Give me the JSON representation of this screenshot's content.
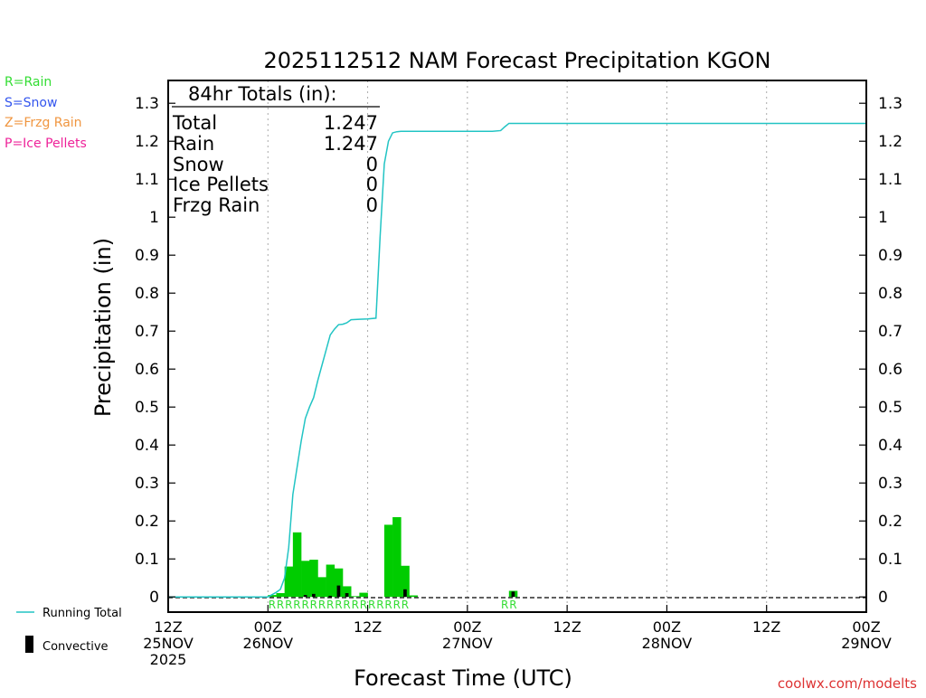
{
  "chart_data": {
    "type": "bar",
    "title": "2025112512 NAM Forecast Precipitation KGON",
    "xlabel": "Forecast Time (UTC)",
    "ylabel": "Precipitation (in)",
    "ylim": [
      -0.04,
      1.36
    ],
    "xlim_hours": [
      0,
      84
    ],
    "y_ticks": [
      {
        "value": 0,
        "label": "0"
      },
      {
        "value": 0.1,
        "label": "0.1"
      },
      {
        "value": 0.2,
        "label": "0.2"
      },
      {
        "value": 0.3,
        "label": "0.3"
      },
      {
        "value": 0.4,
        "label": "0.4"
      },
      {
        "value": 0.5,
        "label": "0.5"
      },
      {
        "value": 0.6,
        "label": "0.6"
      },
      {
        "value": 0.7,
        "label": "0.7"
      },
      {
        "value": 0.8,
        "label": "0.8"
      },
      {
        "value": 0.9,
        "label": "0.9"
      },
      {
        "value": 1.0,
        "label": "1"
      },
      {
        "value": 1.1,
        "label": "1.1"
      },
      {
        "value": 1.2,
        "label": "1.2"
      },
      {
        "value": 1.3,
        "label": "1.3"
      }
    ],
    "x_ticks": [
      {
        "hour": 0,
        "lines": [
          "12Z",
          "25NOV",
          "2025"
        ]
      },
      {
        "hour": 12,
        "lines": [
          "00Z",
          "26NOV"
        ]
      },
      {
        "hour": 24,
        "lines": [
          "12Z"
        ]
      },
      {
        "hour": 36,
        "lines": [
          "00Z",
          "27NOV"
        ]
      },
      {
        "hour": 48,
        "lines": [
          "12Z"
        ]
      },
      {
        "hour": 60,
        "lines": [
          "00Z",
          "28NOV"
        ]
      },
      {
        "hour": 72,
        "lines": [
          "12Z"
        ]
      },
      {
        "hour": 84,
        "lines": [
          "00Z",
          "29NOV"
        ]
      }
    ],
    "grid_hours": [
      12,
      24,
      36,
      48,
      60,
      72
    ],
    "precip_bars": [
      {
        "hour": 12,
        "total": 0.005,
        "convective": 0
      },
      {
        "hour": 13,
        "total": 0.01,
        "convective": 0
      },
      {
        "hour": 14,
        "total": 0.08,
        "convective": 0
      },
      {
        "hour": 15,
        "total": 0.17,
        "convective": 0
      },
      {
        "hour": 16,
        "total": 0.095,
        "convective": 0.005
      },
      {
        "hour": 17,
        "total": 0.098,
        "convective": 0.008
      },
      {
        "hour": 18,
        "total": 0.052,
        "convective": 0
      },
      {
        "hour": 19,
        "total": 0.085,
        "convective": 0.003
      },
      {
        "hour": 20,
        "total": 0.075,
        "convective": 0.03
      },
      {
        "hour": 21,
        "total": 0.028,
        "convective": 0.01
      },
      {
        "hour": 22,
        "total": 0.002,
        "convective": 0
      },
      {
        "hour": 23,
        "total": 0.011,
        "convective": 0
      },
      {
        "hour": 26,
        "total": 0.19,
        "convective": 0
      },
      {
        "hour": 27,
        "total": 0.21,
        "convective": 0
      },
      {
        "hour": 28,
        "total": 0.082,
        "convective": 0.02
      },
      {
        "hour": 29,
        "total": 0.004,
        "convective": 0
      },
      {
        "hour": 41,
        "total": 0.016,
        "convective": 0.014
      }
    ],
    "running_total": [
      [
        0,
        0
      ],
      [
        12,
        0
      ],
      [
        12.5,
        0.006
      ],
      [
        13,
        0.012
      ],
      [
        13.5,
        0.02
      ],
      [
        14,
        0.05
      ],
      [
        14.5,
        0.13
      ],
      [
        15,
        0.27
      ],
      [
        15.5,
        0.34
      ],
      [
        16,
        0.41
      ],
      [
        16.5,
        0.47
      ],
      [
        17,
        0.5
      ],
      [
        17.5,
        0.525
      ],
      [
        18,
        0.57
      ],
      [
        18.5,
        0.61
      ],
      [
        19,
        0.65
      ],
      [
        19.5,
        0.69
      ],
      [
        20,
        0.705
      ],
      [
        20.5,
        0.717
      ],
      [
        21,
        0.718
      ],
      [
        21.5,
        0.722
      ],
      [
        22,
        0.73
      ],
      [
        23,
        0.731
      ],
      [
        24,
        0.732
      ],
      [
        25,
        0.734
      ],
      [
        25.5,
        0.95
      ],
      [
        26,
        1.14
      ],
      [
        26.5,
        1.2
      ],
      [
        27,
        1.222
      ],
      [
        27.5,
        1.225
      ],
      [
        28,
        1.226
      ],
      [
        29,
        1.226
      ],
      [
        36,
        1.226
      ],
      [
        39,
        1.226
      ],
      [
        40,
        1.228
      ],
      [
        40.5,
        1.238
      ],
      [
        41,
        1.247
      ],
      [
        84,
        1.247
      ]
    ],
    "precip_type_markers": [
      {
        "hour": 12.5,
        "label": "R"
      },
      {
        "hour": 13.5,
        "label": "R"
      },
      {
        "hour": 14.5,
        "label": "R"
      },
      {
        "hour": 15.5,
        "label": "R"
      },
      {
        "hour": 16.5,
        "label": "R"
      },
      {
        "hour": 17.5,
        "label": "R"
      },
      {
        "hour": 18.5,
        "label": "R"
      },
      {
        "hour": 19.5,
        "label": "R"
      },
      {
        "hour": 20.5,
        "label": "R"
      },
      {
        "hour": 21.5,
        "label": "R"
      },
      {
        "hour": 22.5,
        "label": "R"
      },
      {
        "hour": 23.5,
        "label": "R"
      },
      {
        "hour": 24.5,
        "label": "R"
      },
      {
        "hour": 25.5,
        "label": "R"
      },
      {
        "hour": 26.5,
        "label": "R"
      },
      {
        "hour": 27.5,
        "label": "R"
      },
      {
        "hour": 28.5,
        "label": "R"
      },
      {
        "hour": 40.5,
        "label": "R"
      },
      {
        "hour": 41.5,
        "label": "R"
      }
    ]
  },
  "totals": {
    "header": "84hr Totals (in):",
    "rows": [
      {
        "label": "Total",
        "value": "1.247"
      },
      {
        "label": "Rain",
        "value": "1.247"
      },
      {
        "label": "Snow",
        "value": "0"
      },
      {
        "label": "Ice Pellets",
        "value": "0"
      },
      {
        "label": "Frzg Rain",
        "value": "0"
      }
    ]
  },
  "type_legend": [
    {
      "text": "R=Rain",
      "color": "#33dd33"
    },
    {
      "text": "S=Snow",
      "color": "#3355ee"
    },
    {
      "text": "Z=Frzg Rain",
      "color": "#f09640"
    },
    {
      "text": "P=Ice Pellets",
      "color": "#ee2299"
    }
  ],
  "series_legend": {
    "running_total": "Running Total",
    "convective": "Convective"
  },
  "credit": "coolwx.com/modelts",
  "colors": {
    "rain": "#00cc00",
    "running_total": "#22c4c4",
    "convective": "#000000",
    "grid": "#aaaaaa",
    "credit": "#dd3333"
  }
}
